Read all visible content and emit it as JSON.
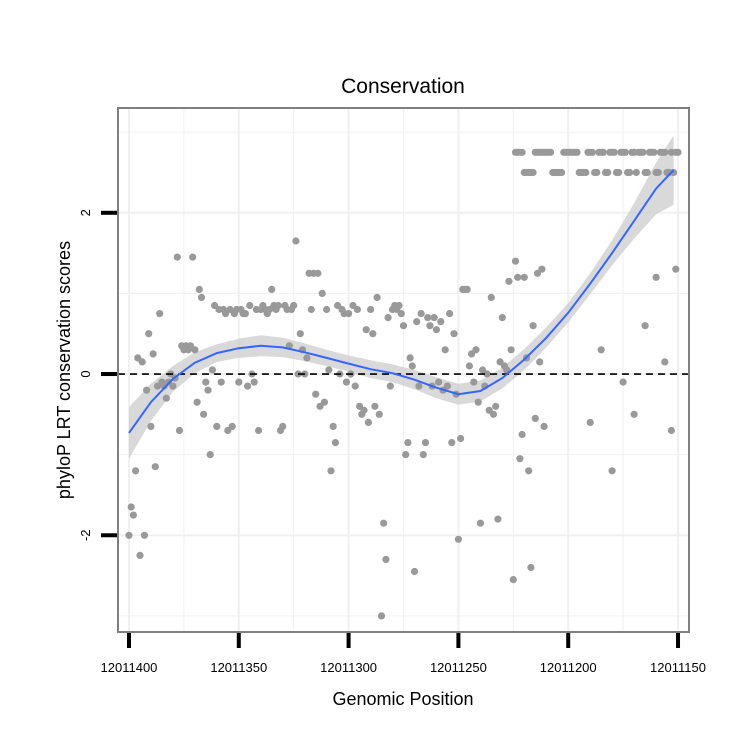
{
  "chart_data": {
    "type": "scatter",
    "title": "Conservation",
    "xlabel": "Genomic Position",
    "ylabel": "phyloP LRT conservation scores",
    "xlim": [
      12011405,
      12011145
    ],
    "ylim": [
      -3.2,
      3.3
    ],
    "x_reversed": true,
    "grid": true,
    "x_ticks": [
      {
        "value": 12011400,
        "label": "12011400"
      },
      {
        "value": 12011350,
        "label": "12011350"
      },
      {
        "value": 12011300,
        "label": "12011300"
      },
      {
        "value": 12011250,
        "label": "12011250"
      },
      {
        "value": 12011200,
        "label": "12011200"
      },
      {
        "value": 12011150,
        "label": "12011150"
      }
    ],
    "y_ticks": [
      {
        "value": 2,
        "label": "2"
      },
      {
        "value": 0,
        "label": "0"
      },
      {
        "value": -2,
        "label": "-2"
      }
    ],
    "reference_line": {
      "y": 0,
      "style": "dashed",
      "color": "#000000"
    },
    "colors": {
      "points": "#999999",
      "smooth": "#3366ff",
      "band": "#cccccc",
      "frame": "#808080",
      "grid": "#f0f0f0"
    },
    "smooth": [
      {
        "x": 12011400,
        "y": -0.73,
        "lo": -1.05,
        "hi": -0.41
      },
      {
        "x": 12011390,
        "y": -0.35,
        "lo": -0.58,
        "hi": -0.12
      },
      {
        "x": 12011380,
        "y": -0.06,
        "lo": -0.22,
        "hi": 0.1
      },
      {
        "x": 12011370,
        "y": 0.14,
        "lo": 0.01,
        "hi": 0.27
      },
      {
        "x": 12011360,
        "y": 0.26,
        "lo": 0.15,
        "hi": 0.37
      },
      {
        "x": 12011350,
        "y": 0.32,
        "lo": 0.2,
        "hi": 0.44
      },
      {
        "x": 12011340,
        "y": 0.35,
        "lo": 0.22,
        "hi": 0.48
      },
      {
        "x": 12011330,
        "y": 0.33,
        "lo": 0.21,
        "hi": 0.45
      },
      {
        "x": 12011320,
        "y": 0.27,
        "lo": 0.16,
        "hi": 0.38
      },
      {
        "x": 12011310,
        "y": 0.2,
        "lo": 0.1,
        "hi": 0.3
      },
      {
        "x": 12011300,
        "y": 0.13,
        "lo": 0.03,
        "hi": 0.23
      },
      {
        "x": 12011290,
        "y": 0.06,
        "lo": -0.05,
        "hi": 0.17
      },
      {
        "x": 12011280,
        "y": 0.01,
        "lo": -0.1,
        "hi": 0.12
      },
      {
        "x": 12011270,
        "y": -0.07,
        "lo": -0.19,
        "hi": 0.05
      },
      {
        "x": 12011260,
        "y": -0.17,
        "lo": -0.3,
        "hi": -0.04
      },
      {
        "x": 12011250,
        "y": -0.25,
        "lo": -0.38,
        "hi": -0.12
      },
      {
        "x": 12011240,
        "y": -0.21,
        "lo": -0.34,
        "hi": -0.08
      },
      {
        "x": 12011230,
        "y": -0.05,
        "lo": -0.18,
        "hi": 0.08
      },
      {
        "x": 12011220,
        "y": 0.18,
        "lo": 0.05,
        "hi": 0.31
      },
      {
        "x": 12011210,
        "y": 0.45,
        "lo": 0.33,
        "hi": 0.58
      },
      {
        "x": 12011200,
        "y": 0.76,
        "lo": 0.64,
        "hi": 0.88
      },
      {
        "x": 12011190,
        "y": 1.12,
        "lo": 0.99,
        "hi": 1.25
      },
      {
        "x": 12011180,
        "y": 1.5,
        "lo": 1.35,
        "hi": 1.66
      },
      {
        "x": 12011170,
        "y": 1.9,
        "lo": 1.68,
        "hi": 2.12
      },
      {
        "x": 12011160,
        "y": 2.3,
        "lo": 1.98,
        "hi": 2.62
      },
      {
        "x": 12011152,
        "y": 2.53,
        "lo": 2.1,
        "hi": 2.96
      }
    ],
    "points": [
      [
        12011400,
        -2.0
      ],
      [
        12011399,
        -1.65
      ],
      [
        12011398,
        -1.75
      ],
      [
        12011397,
        -1.2
      ],
      [
        12011396,
        0.2
      ],
      [
        12011395,
        -2.25
      ],
      [
        12011394,
        0.15
      ],
      [
        12011393,
        -2.0
      ],
      [
        12011392,
        -0.2
      ],
      [
        12011391,
        0.5
      ],
      [
        12011390,
        -0.65
      ],
      [
        12011389,
        0.25
      ],
      [
        12011388,
        -1.15
      ],
      [
        12011387,
        -0.15
      ],
      [
        12011386,
        0.75
      ],
      [
        12011385,
        -0.1
      ],
      [
        12011384,
        -0.15
      ],
      [
        12011383,
        -0.3
      ],
      [
        12011382,
        -0.1
      ],
      [
        12011381,
        0.0
      ],
      [
        12011380,
        -0.15
      ],
      [
        12011379,
        -0.05
      ],
      [
        12011378,
        1.45
      ],
      [
        12011377,
        -0.7
      ],
      [
        12011376,
        0.35
      ],
      [
        12011375,
        0.3
      ],
      [
        12011374,
        0.35
      ],
      [
        12011373,
        0.3
      ],
      [
        12011372,
        0.35
      ],
      [
        12011371,
        1.45
      ],
      [
        12011370,
        0.3
      ],
      [
        12011369,
        -0.35
      ],
      [
        12011368,
        1.05
      ],
      [
        12011367,
        0.95
      ],
      [
        12011366,
        -0.5
      ],
      [
        12011365,
        -0.1
      ],
      [
        12011364,
        -0.2
      ],
      [
        12011363,
        -1.0
      ],
      [
        12011362,
        0.05
      ],
      [
        12011361,
        0.85
      ],
      [
        12011360,
        -0.65
      ],
      [
        12011359,
        0.8
      ],
      [
        12011358,
        -0.1
      ],
      [
        12011357,
        0.8
      ],
      [
        12011356,
        0.75
      ],
      [
        12011355,
        -0.7
      ],
      [
        12011354,
        0.8
      ],
      [
        12011353,
        -0.65
      ],
      [
        12011352,
        0.75
      ],
      [
        12011351,
        0.8
      ],
      [
        12011350,
        -0.1
      ],
      [
        12011349,
        0.8
      ],
      [
        12011348,
        0.75
      ],
      [
        12011347,
        0.75
      ],
      [
        12011346,
        -0.15
      ],
      [
        12011345,
        0.85
      ],
      [
        12011344,
        0.0
      ],
      [
        12011343,
        -0.1
      ],
      [
        12011342,
        0.8
      ],
      [
        12011341,
        -0.7
      ],
      [
        12011340,
        0.8
      ],
      [
        12011339,
        0.85
      ],
      [
        12011338,
        0.8
      ],
      [
        12011337,
        0.75
      ],
      [
        12011336,
        0.8
      ],
      [
        12011335,
        1.05
      ],
      [
        12011334,
        0.85
      ],
      [
        12011333,
        0.8
      ],
      [
        12011332,
        0.85
      ],
      [
        12011331,
        -0.7
      ],
      [
        12011330,
        -0.65
      ],
      [
        12011329,
        0.85
      ],
      [
        12011328,
        0.8
      ],
      [
        12011327,
        0.35
      ],
      [
        12011326,
        0.8
      ],
      [
        12011325,
        0.85
      ],
      [
        12011324,
        1.65
      ],
      [
        12011323,
        0.0
      ],
      [
        12011322,
        0.5
      ],
      [
        12011321,
        0.3
      ],
      [
        12011320,
        0.0
      ],
      [
        12011319,
        0.2
      ],
      [
        12011318,
        1.25
      ],
      [
        12011317,
        0.8
      ],
      [
        12011316,
        1.25
      ],
      [
        12011315,
        -0.25
      ],
      [
        12011314,
        1.25
      ],
      [
        12011313,
        -0.4
      ],
      [
        12011312,
        1.0
      ],
      [
        12011311,
        -0.35
      ],
      [
        12011310,
        0.8
      ],
      [
        12011309,
        0.05
      ],
      [
        12011308,
        -1.2
      ],
      [
        12011307,
        -0.65
      ],
      [
        12011306,
        -0.85
      ],
      [
        12011305,
        0.85
      ],
      [
        12011304,
        0.0
      ],
      [
        12011303,
        0.8
      ],
      [
        12011302,
        0.75
      ],
      [
        12011301,
        -0.1
      ],
      [
        12011300,
        0.75
      ],
      [
        12011299,
        0.0
      ],
      [
        12011298,
        0.85
      ],
      [
        12011297,
        -0.15
      ],
      [
        12011296,
        0.8
      ],
      [
        12011295,
        -0.4
      ],
      [
        12011294,
        -0.5
      ],
      [
        12011293,
        -0.45
      ],
      [
        12011292,
        0.55
      ],
      [
        12011291,
        -0.6
      ],
      [
        12011290,
        0.8
      ],
      [
        12011289,
        0.5
      ],
      [
        12011288,
        -0.4
      ],
      [
        12011287,
        0.95
      ],
      [
        12011286,
        -0.5
      ],
      [
        12011285,
        -3.0
      ],
      [
        12011284,
        -1.85
      ],
      [
        12011283,
        -2.3
      ],
      [
        12011282,
        0.7
      ],
      [
        12011281,
        -0.15
      ],
      [
        12011280,
        0.8
      ],
      [
        12011279,
        0.85
      ],
      [
        12011278,
        0.8
      ],
      [
        12011277,
        0.85
      ],
      [
        12011276,
        0.75
      ],
      [
        12011275,
        0.6
      ],
      [
        12011274,
        -1.0
      ],
      [
        12011273,
        -0.85
      ],
      [
        12011272,
        0.2
      ],
      [
        12011271,
        0.1
      ],
      [
        12011270,
        -2.45
      ],
      [
        12011269,
        0.65
      ],
      [
        12011268,
        -0.15
      ],
      [
        12011267,
        0.75
      ],
      [
        12011266,
        -1.0
      ],
      [
        12011265,
        -0.85
      ],
      [
        12011264,
        0.7
      ],
      [
        12011263,
        0.6
      ],
      [
        12011262,
        -0.15
      ],
      [
        12011261,
        0.7
      ],
      [
        12011260,
        0.55
      ],
      [
        12011259,
        -0.1
      ],
      [
        12011258,
        0.65
      ],
      [
        12011257,
        -0.2
      ],
      [
        12011256,
        0.3
      ],
      [
        12011255,
        -0.15
      ],
      [
        12011254,
        0.75
      ],
      [
        12011253,
        -0.85
      ],
      [
        12011252,
        0.5
      ],
      [
        12011251,
        -0.25
      ],
      [
        12011250,
        -2.05
      ],
      [
        12011249,
        -0.8
      ],
      [
        12011248,
        1.05
      ],
      [
        12011247,
        1.05
      ],
      [
        12011246,
        1.05
      ],
      [
        12011245,
        0.1
      ],
      [
        12011244,
        0.25
      ],
      [
        12011243,
        -0.1
      ],
      [
        12011242,
        0.3
      ],
      [
        12011241,
        -0.35
      ],
      [
        12011240,
        -1.85
      ],
      [
        12011239,
        0.05
      ],
      [
        12011238,
        -0.15
      ],
      [
        12011237,
        0.0
      ],
      [
        12011236,
        -0.45
      ],
      [
        12011235,
        0.95
      ],
      [
        12011234,
        -0.5
      ],
      [
        12011233,
        -0.4
      ],
      [
        12011232,
        -1.8
      ],
      [
        12011231,
        0.15
      ],
      [
        12011230,
        0.7
      ],
      [
        12011229,
        0.1
      ],
      [
        12011228,
        0.05
      ],
      [
        12011227,
        1.15
      ],
      [
        12011226,
        0.3
      ],
      [
        12011225,
        -2.55
      ],
      [
        12011224,
        1.4
      ],
      [
        12011223,
        1.2
      ],
      [
        12011222,
        -1.05
      ],
      [
        12011221,
        -0.75
      ],
      [
        12011220,
        1.2
      ],
      [
        12011219,
        0.2
      ],
      [
        12011218,
        -1.2
      ],
      [
        12011217,
        -2.4
      ],
      [
        12011216,
        0.6
      ],
      [
        12011215,
        -0.55
      ],
      [
        12011214,
        1.25
      ],
      [
        12011213,
        0.15
      ],
      [
        12011212,
        1.3
      ],
      [
        12011211,
        -0.65
      ],
      [
        12011224,
        2.75
      ],
      [
        12011223,
        2.75
      ],
      [
        12011222,
        2.75
      ],
      [
        12011221,
        2.75
      ],
      [
        12011220,
        2.5
      ],
      [
        12011219,
        2.5
      ],
      [
        12011218,
        2.5
      ],
      [
        12011217,
        2.5
      ],
      [
        12011216,
        2.5
      ],
      [
        12011215,
        2.75
      ],
      [
        12011214,
        2.75
      ],
      [
        12011213,
        2.75
      ],
      [
        12011212,
        2.75
      ],
      [
        12011211,
        2.75
      ],
      [
        12011210,
        2.75
      ],
      [
        12011209,
        2.75
      ],
      [
        12011208,
        2.75
      ],
      [
        12011207,
        2.5
      ],
      [
        12011206,
        2.5
      ],
      [
        12011205,
        2.5
      ],
      [
        12011204,
        2.5
      ],
      [
        12011203,
        2.5
      ],
      [
        12011202,
        2.75
      ],
      [
        12011201,
        2.75
      ],
      [
        12011200,
        2.75
      ],
      [
        12011199,
        2.75
      ],
      [
        12011198,
        2.75
      ],
      [
        12011197,
        2.75
      ],
      [
        12011196,
        2.75
      ],
      [
        12011195,
        2.5
      ],
      [
        12011194,
        2.5
      ],
      [
        12011193,
        2.5
      ],
      [
        12011192,
        2.5
      ],
      [
        12011191,
        2.75
      ],
      [
        12011190,
        2.75
      ],
      [
        12011189,
        2.75
      ],
      [
        12011188,
        2.5
      ],
      [
        12011187,
        2.5
      ],
      [
        12011186,
        2.75
      ],
      [
        12011185,
        2.75
      ],
      [
        12011184,
        2.75
      ],
      [
        12011183,
        2.5
      ],
      [
        12011182,
        2.5
      ],
      [
        12011181,
        2.75
      ],
      [
        12011180,
        2.75
      ],
      [
        12011179,
        2.75
      ],
      [
        12011178,
        2.5
      ],
      [
        12011177,
        2.5
      ],
      [
        12011176,
        2.75
      ],
      [
        12011175,
        2.75
      ],
      [
        12011174,
        2.75
      ],
      [
        12011173,
        2.5
      ],
      [
        12011172,
        2.5
      ],
      [
        12011171,
        2.75
      ],
      [
        12011170,
        2.75
      ],
      [
        12011169,
        2.5
      ],
      [
        12011168,
        2.75
      ],
      [
        12011167,
        2.75
      ],
      [
        12011166,
        2.75
      ],
      [
        12011165,
        2.5
      ],
      [
        12011164,
        2.5
      ],
      [
        12011163,
        2.75
      ],
      [
        12011162,
        2.75
      ],
      [
        12011161,
        2.75
      ],
      [
        12011160,
        2.5
      ],
      [
        12011159,
        2.5
      ],
      [
        12011158,
        2.75
      ],
      [
        12011157,
        2.75
      ],
      [
        12011156,
        2.75
      ],
      [
        12011155,
        2.5
      ],
      [
        12011154,
        2.5
      ],
      [
        12011153,
        2.75
      ],
      [
        12011152,
        2.5
      ],
      [
        12011151,
        2.75
      ],
      [
        12011150,
        2.75
      ],
      [
        12011190,
        -0.6
      ],
      [
        12011180,
        -1.2
      ],
      [
        12011170,
        -0.5
      ],
      [
        12011165,
        0.6
      ],
      [
        12011160,
        1.2
      ],
      [
        12011156,
        0.15
      ],
      [
        12011153,
        -0.7
      ],
      [
        12011151,
        1.3
      ],
      [
        12011175,
        -0.1
      ],
      [
        12011185,
        0.3
      ]
    ]
  }
}
